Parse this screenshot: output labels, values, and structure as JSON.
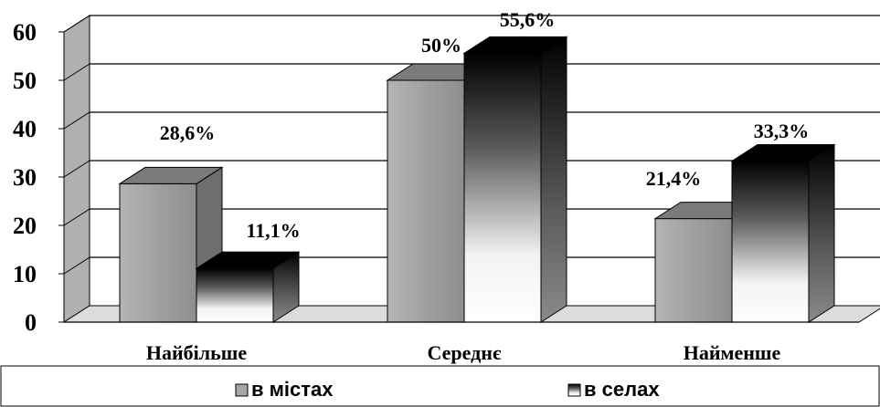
{
  "chart_data": {
    "type": "bar",
    "categories": [
      "Найбільше",
      "Середнє",
      "Найменше"
    ],
    "series": [
      {
        "name": "в містах",
        "values": [
          28.6,
          50,
          21.4
        ],
        "labels": [
          "28,6%",
          "50%",
          "21,4%"
        ],
        "color": "#a6a6a6"
      },
      {
        "name": "в селах",
        "values": [
          11.1,
          55.6,
          33.3
        ],
        "labels": [
          "11,1%",
          "55,6%",
          "33,3%"
        ],
        "color": "#000000"
      }
    ],
    "ylim": [
      0,
      60
    ],
    "yticks": [
      "0",
      "10",
      "20",
      "30",
      "40",
      "50",
      "60"
    ],
    "grid": true,
    "legend": "bottom",
    "style": "3d"
  }
}
